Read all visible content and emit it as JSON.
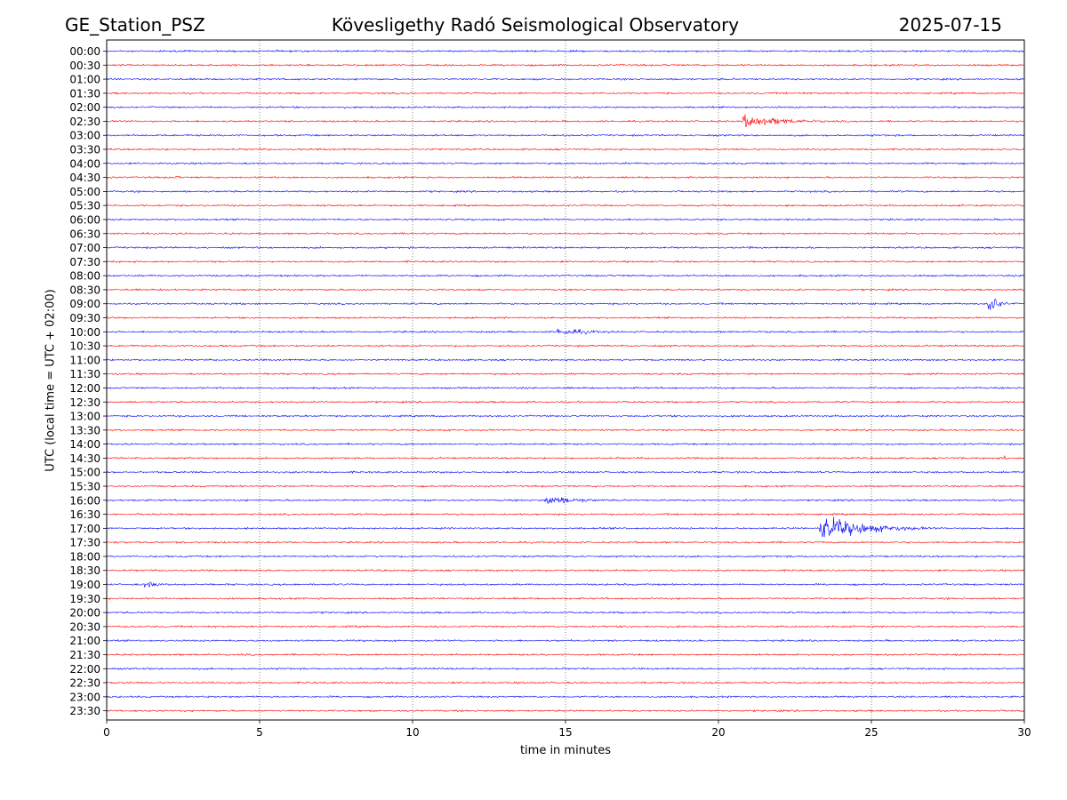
{
  "header": {
    "station": "GE_Station_PSZ",
    "observatory": "Kövesligethy Radó Seismological Observatory",
    "date": "2025-07-15"
  },
  "chart_data": {
    "type": "line",
    "title": "Kövesligethy Radó Seismological Observatory",
    "xlabel": "time in minutes",
    "ylabel": "UTC (local time = UTC + 02:00)",
    "xlim": [
      0,
      30
    ],
    "x_ticks": [
      0,
      5,
      10,
      15,
      20,
      25,
      30
    ],
    "grid": "vertical dotted lines at every 5 minutes",
    "colors": {
      "even_rows": "#0000ff",
      "odd_rows": "#ff0000",
      "grid": "#666666"
    },
    "rows": [
      "00:00",
      "00:30",
      "01:00",
      "01:30",
      "02:00",
      "02:30",
      "03:00",
      "03:30",
      "04:00",
      "04:30",
      "05:00",
      "05:30",
      "06:00",
      "06:30",
      "07:00",
      "07:30",
      "08:00",
      "08:30",
      "09:00",
      "09:30",
      "10:00",
      "10:30",
      "11:00",
      "11:30",
      "12:00",
      "12:30",
      "13:00",
      "13:30",
      "14:00",
      "14:30",
      "15:00",
      "15:30",
      "16:00",
      "16:30",
      "17:00",
      "17:30",
      "18:00",
      "18:30",
      "19:00",
      "19:30",
      "20:00",
      "20:30",
      "21:00",
      "21:30",
      "22:00",
      "22:30",
      "23:00",
      "23:30"
    ],
    "events": [
      {
        "row": "02:30",
        "start_min": 20.75,
        "end_min": 27.0,
        "peak_amplitude": 1.0
      },
      {
        "row": "03:00",
        "start_min": 23.4,
        "end_min": 24.4,
        "peak_amplitude": 0.2
      },
      {
        "row": "04:30",
        "start_min": 2.2,
        "end_min": 3.8,
        "peak_amplitude": 0.3
      },
      {
        "row": "04:30",
        "start_min": 5.2,
        "end_min": 6.2,
        "peak_amplitude": 0.1
      },
      {
        "row": "04:30",
        "start_min": 17.1,
        "end_min": 17.7,
        "peak_amplitude": 0.2
      },
      {
        "row": "07:00",
        "start_min": 21.0,
        "end_min": 22.4,
        "peak_amplitude": 0.2
      },
      {
        "row": "08:00",
        "start_min": 21.0,
        "end_min": 23.0,
        "peak_amplitude": 0.25
      },
      {
        "row": "08:30",
        "start_min": 27.7,
        "end_min": 28.8,
        "peak_amplitude": 0.15
      },
      {
        "row": "09:00",
        "start_min": 5.5,
        "end_min": 5.9,
        "peak_amplitude": 0.35
      },
      {
        "row": "09:00",
        "start_min": 28.8,
        "end_min": 30.0,
        "peak_amplitude": 2.2
      },
      {
        "row": "10:00",
        "start_min": 14.7,
        "end_min": 20.5,
        "peak_amplitude": 0.55
      },
      {
        "row": "14:00",
        "start_min": 10.4,
        "end_min": 10.9,
        "peak_amplitude": 0.12
      },
      {
        "row": "14:30",
        "start_min": 29.3,
        "end_min": 30.0,
        "peak_amplitude": 0.55
      },
      {
        "row": "15:00",
        "start_min": 0.0,
        "end_min": 0.8,
        "peak_amplitude": 0.15
      },
      {
        "row": "16:00",
        "start_min": 14.3,
        "end_min": 19.5,
        "peak_amplitude": 0.75
      },
      {
        "row": "17:00",
        "start_min": 23.3,
        "end_min": 30.0,
        "peak_amplitude": 1.9
      },
      {
        "row": "17:30",
        "start_min": 0.0,
        "end_min": 4.8,
        "peak_amplitude": 0.2
      },
      {
        "row": "19:00",
        "start_min": 1.2,
        "end_min": 4.0,
        "peak_amplitude": 0.55
      }
    ]
  }
}
